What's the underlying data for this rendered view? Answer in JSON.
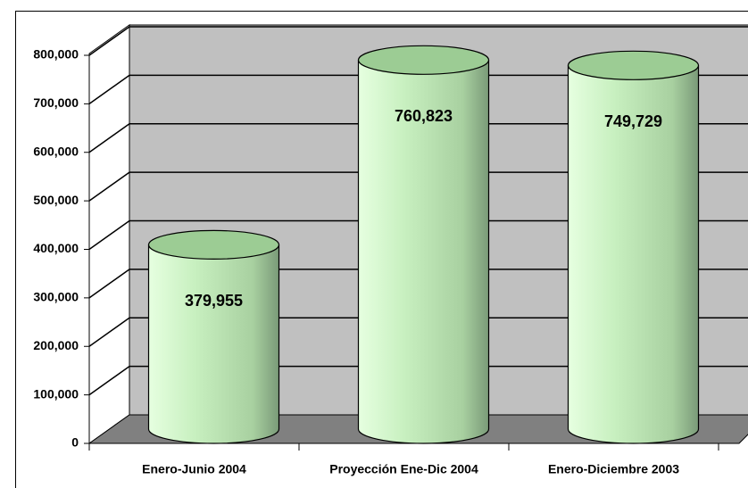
{
  "chart_data": {
    "type": "cylinder",
    "categories": [
      "Enero-Junio 2004",
      "Proyección Ene-Dic 2004",
      "Enero-Diciembre 2003"
    ],
    "values": [
      379955,
      760823,
      749729
    ],
    "value_labels": [
      "379,955",
      "760,823",
      "749,729"
    ],
    "color": "#c8f0c0",
    "ylim": [
      0,
      800000
    ],
    "yticks": [
      {
        "value": 0,
        "label": "0"
      },
      {
        "value": 100000,
        "label": "100,000"
      },
      {
        "value": 200000,
        "label": "200,000"
      },
      {
        "value": 300000,
        "label": "300,000"
      },
      {
        "value": 400000,
        "label": "400,000"
      },
      {
        "value": 500000,
        "label": "500,000"
      },
      {
        "value": 600000,
        "label": "600,000"
      },
      {
        "value": 700000,
        "label": "700,000"
      },
      {
        "value": 800000,
        "label": "800,000"
      }
    ],
    "grid": true
  }
}
